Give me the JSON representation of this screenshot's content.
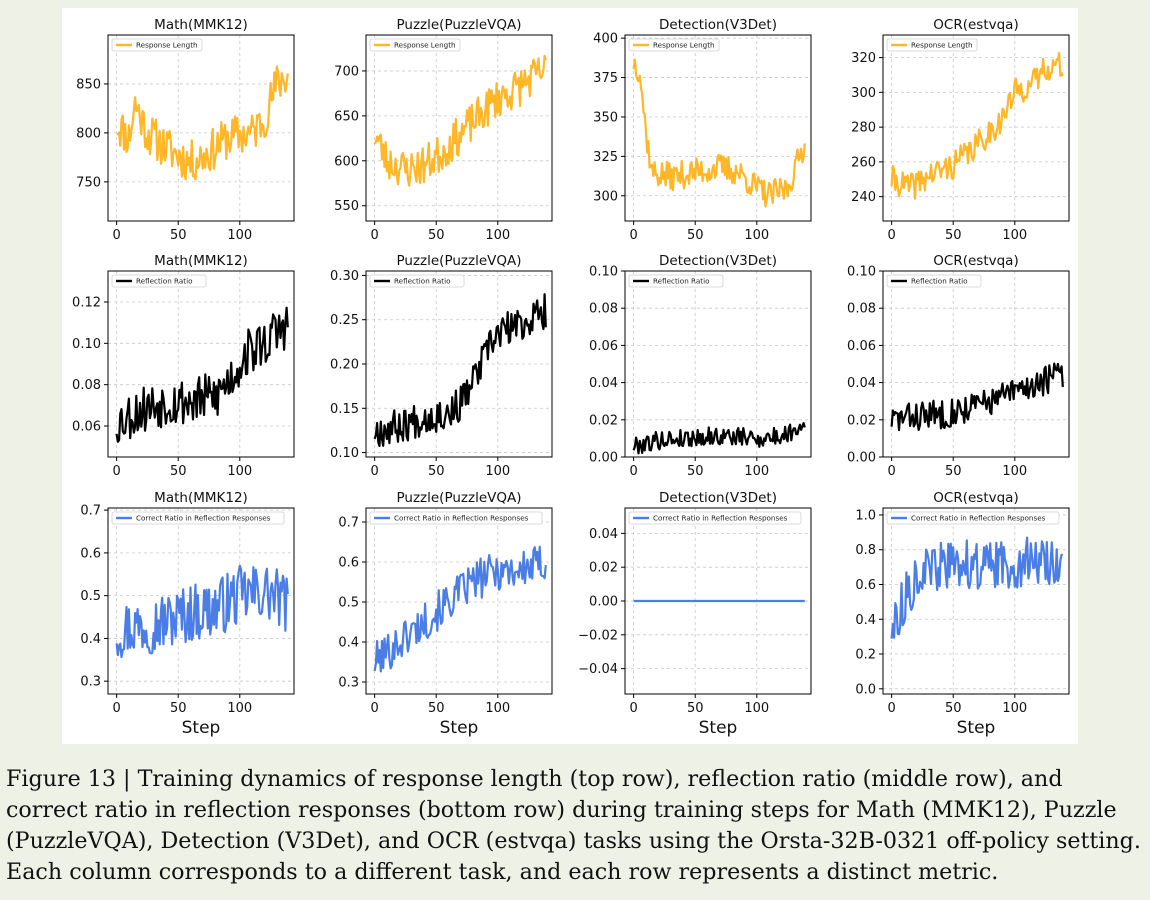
{
  "caption": "Figure 13 | Training dynamics of response length (top row), reflection ratio (middle row), and correct ratio in reflection responses (bottom row) during training steps for Math (MMK12), Puzzle (PuzzleVQA), Detection (V3Det), and OCR (estvqa) tasks using the Orsta-32B-0321 off-policy setting. Each column corresponds to a different task, and each row represents a distinct metric.",
  "colors": {
    "response": "#ffb627",
    "reflection": "#000000",
    "correct": "#4a7ee6"
  },
  "chart_data": [
    {
      "type": "line",
      "title": "Math(MMK12)",
      "xlabel": "",
      "legend": "Response Length",
      "xlim": [
        -7,
        144
      ],
      "ylim": [
        710,
        900
      ],
      "xticks": [
        0,
        50,
        100
      ],
      "yticks": [
        750,
        800,
        850
      ],
      "yfmt": "int",
      "color": "#ffb627",
      "n": 140,
      "seed": 11,
      "anchors": [
        [
          0,
          810
        ],
        [
          10,
          795
        ],
        [
          15,
          830
        ],
        [
          25,
          800
        ],
        [
          40,
          785
        ],
        [
          60,
          770
        ],
        [
          75,
          780
        ],
        [
          90,
          795
        ],
        [
          110,
          800
        ],
        [
          120,
          815
        ],
        [
          130,
          850
        ],
        [
          139,
          860
        ]
      ],
      "noise": 22
    },
    {
      "type": "line",
      "title": "Puzzle(PuzzleVQA)",
      "xlabel": "",
      "legend": "Response Length",
      "xlim": [
        -7,
        144
      ],
      "ylim": [
        533,
        740
      ],
      "xticks": [
        0,
        50,
        100
      ],
      "yticks": [
        550,
        600,
        650,
        700
      ],
      "yfmt": "int",
      "color": "#ffb627",
      "n": 140,
      "seed": 23,
      "anchors": [
        [
          0,
          630
        ],
        [
          10,
          600
        ],
        [
          25,
          590
        ],
        [
          40,
          595
        ],
        [
          55,
          610
        ],
        [
          70,
          630
        ],
        [
          85,
          650
        ],
        [
          100,
          670
        ],
        [
          115,
          680
        ],
        [
          125,
          690
        ],
        [
          139,
          700
        ]
      ],
      "noise": 22
    },
    {
      "type": "line",
      "title": "Detection(V3Det)",
      "xlabel": "",
      "legend": "Response Length",
      "xlim": [
        -7,
        144
      ],
      "ylim": [
        284,
        402
      ],
      "xticks": [
        0,
        50,
        100
      ],
      "yticks": [
        300,
        325,
        350,
        375,
        400
      ],
      "yfmt": "int",
      "color": "#ffb627",
      "n": 140,
      "seed": 37,
      "anchors": [
        [
          0,
          385
        ],
        [
          5,
          380
        ],
        [
          10,
          340
        ],
        [
          15,
          315
        ],
        [
          30,
          312
        ],
        [
          50,
          315
        ],
        [
          70,
          318
        ],
        [
          85,
          315
        ],
        [
          100,
          305
        ],
        [
          110,
          300
        ],
        [
          125,
          305
        ],
        [
          135,
          325
        ],
        [
          139,
          335
        ]
      ],
      "noise": 9
    },
    {
      "type": "line",
      "title": "OCR(estvqa)",
      "xlabel": "",
      "legend": "Response Length",
      "xlim": [
        -7,
        144
      ],
      "ylim": [
        226,
        333
      ],
      "xticks": [
        0,
        50,
        100
      ],
      "yticks": [
        240,
        260,
        280,
        300,
        320
      ],
      "yfmt": "int",
      "color": "#ffb627",
      "n": 140,
      "seed": 41,
      "anchors": [
        [
          0,
          250
        ],
        [
          15,
          245
        ],
        [
          30,
          252
        ],
        [
          50,
          258
        ],
        [
          70,
          270
        ],
        [
          90,
          285
        ],
        [
          100,
          300
        ],
        [
          115,
          305
        ],
        [
          125,
          315
        ],
        [
          139,
          315
        ]
      ],
      "noise": 8
    },
    {
      "type": "line",
      "title": "Math(MMK12)",
      "xlabel": "",
      "legend": "Reflection Ratio",
      "xlim": [
        -7,
        144
      ],
      "ylim": [
        0.045,
        0.135
      ],
      "xticks": [
        0,
        50,
        100
      ],
      "yticks": [
        0.06,
        0.08,
        0.1,
        0.12
      ],
      "yfmt": "2",
      "color": "#000000",
      "n": 140,
      "seed": 53,
      "anchors": [
        [
          0,
          0.062
        ],
        [
          20,
          0.068
        ],
        [
          40,
          0.072
        ],
        [
          60,
          0.072
        ],
        [
          80,
          0.074
        ],
        [
          95,
          0.085
        ],
        [
          105,
          0.095
        ],
        [
          120,
          0.1
        ],
        [
          139,
          0.11
        ]
      ],
      "noise": 0.012
    },
    {
      "type": "line",
      "title": "Puzzle(PuzzleVQA)",
      "xlabel": "",
      "legend": "Reflection Ratio",
      "xlim": [
        -7,
        144
      ],
      "ylim": [
        0.095,
        0.305
      ],
      "xticks": [
        0,
        50,
        100
      ],
      "yticks": [
        0.1,
        0.15,
        0.2,
        0.25,
        0.3
      ],
      "yfmt": "2",
      "color": "#000000",
      "n": 140,
      "seed": 67,
      "anchors": [
        [
          0,
          0.125
        ],
        [
          20,
          0.13
        ],
        [
          40,
          0.14
        ],
        [
          60,
          0.145
        ],
        [
          70,
          0.155
        ],
        [
          80,
          0.18
        ],
        [
          90,
          0.21
        ],
        [
          100,
          0.235
        ],
        [
          120,
          0.245
        ],
        [
          139,
          0.26
        ]
      ],
      "noise": 0.02
    },
    {
      "type": "line",
      "title": "Detection(V3Det)",
      "xlabel": "",
      "legend": "Reflection Ratio",
      "xlim": [
        -7,
        144
      ],
      "ylim": [
        0,
        0.1
      ],
      "xticks": [
        0,
        50,
        100
      ],
      "yticks": [
        0.0,
        0.02,
        0.04,
        0.06,
        0.08,
        0.1
      ],
      "yfmt": "2",
      "color": "#000000",
      "n": 140,
      "seed": 79,
      "anchors": [
        [
          0,
          0.006
        ],
        [
          20,
          0.009
        ],
        [
          40,
          0.01
        ],
        [
          60,
          0.011
        ],
        [
          80,
          0.011
        ],
        [
          100,
          0.01
        ],
        [
          120,
          0.011
        ],
        [
          139,
          0.018
        ]
      ],
      "noise": 0.005
    },
    {
      "type": "line",
      "title": "OCR(estvqa)",
      "xlabel": "",
      "legend": "Reflection Ratio",
      "xlim": [
        -7,
        144
      ],
      "ylim": [
        0,
        0.1
      ],
      "xticks": [
        0,
        50,
        100
      ],
      "yticks": [
        0.0,
        0.02,
        0.04,
        0.06,
        0.08,
        0.1
      ],
      "yfmt": "2",
      "color": "#000000",
      "n": 140,
      "seed": 83,
      "anchors": [
        [
          0,
          0.02
        ],
        [
          20,
          0.022
        ],
        [
          40,
          0.023
        ],
        [
          60,
          0.026
        ],
        [
          80,
          0.03
        ],
        [
          100,
          0.035
        ],
        [
          120,
          0.04
        ],
        [
          139,
          0.045
        ]
      ],
      "noise": 0.008
    },
    {
      "type": "line",
      "title": "Math(MMK12)",
      "xlabel": "Step",
      "legend": "Correct Ratio in Reflection Responses",
      "xlim": [
        -7,
        144
      ],
      "ylim": [
        0.27,
        0.705
      ],
      "xticks": [
        0,
        50,
        100
      ],
      "yticks": [
        0.3,
        0.4,
        0.5,
        0.6,
        0.7
      ],
      "yfmt": "1",
      "color": "#4a7ee6",
      "n": 140,
      "seed": 97,
      "anchors": [
        [
          0,
          0.42
        ],
        [
          20,
          0.43
        ],
        [
          40,
          0.44
        ],
        [
          60,
          0.46
        ],
        [
          80,
          0.47
        ],
        [
          100,
          0.5
        ],
        [
          120,
          0.51
        ],
        [
          139,
          0.48
        ]
      ],
      "noise": 0.07
    },
    {
      "type": "line",
      "title": "Puzzle(PuzzleVQA)",
      "xlabel": "Step",
      "legend": "Correct Ratio in Reflection Responses",
      "xlim": [
        -7,
        144
      ],
      "ylim": [
        0.27,
        0.735
      ],
      "xticks": [
        0,
        50,
        100
      ],
      "yticks": [
        0.3,
        0.4,
        0.5,
        0.6,
        0.7
      ],
      "yfmt": "1",
      "color": "#4a7ee6",
      "n": 140,
      "seed": 101,
      "anchors": [
        [
          0,
          0.35
        ],
        [
          20,
          0.4
        ],
        [
          40,
          0.45
        ],
        [
          60,
          0.5
        ],
        [
          80,
          0.55
        ],
        [
          100,
          0.58
        ],
        [
          120,
          0.58
        ],
        [
          139,
          0.6
        ]
      ],
      "noise": 0.05
    },
    {
      "type": "line",
      "title": "Detection(V3Det)",
      "xlabel": "Step",
      "legend": "Correct Ratio in Reflection Responses",
      "xlim": [
        -7,
        144
      ],
      "ylim": [
        -0.055,
        0.055
      ],
      "xticks": [
        0,
        50,
        100
      ],
      "yticks": [
        -0.04,
        -0.02,
        0.0,
        0.02,
        0.04
      ],
      "yfmt": "2m",
      "color": "#4a7ee6",
      "n": 140,
      "seed": 0,
      "anchors": [
        [
          0,
          0
        ],
        [
          139,
          0
        ]
      ],
      "noise": 0
    },
    {
      "type": "line",
      "title": "OCR(estvqa)",
      "xlabel": "Step",
      "legend": "Correct Ratio in Reflection Responses",
      "xlim": [
        -7,
        144
      ],
      "ylim": [
        -0.03,
        1.04
      ],
      "xticks": [
        0,
        50,
        100
      ],
      "yticks": [
        0.0,
        0.2,
        0.4,
        0.6,
        0.8,
        1.0
      ],
      "yfmt": "1",
      "color": "#4a7ee6",
      "n": 140,
      "seed": 113,
      "anchors": [
        [
          0,
          0.35
        ],
        [
          10,
          0.5
        ],
        [
          20,
          0.65
        ],
        [
          40,
          0.7
        ],
        [
          60,
          0.72
        ],
        [
          80,
          0.7
        ],
        [
          100,
          0.72
        ],
        [
          120,
          0.74
        ],
        [
          139,
          0.72
        ]
      ],
      "noise": 0.14
    }
  ]
}
